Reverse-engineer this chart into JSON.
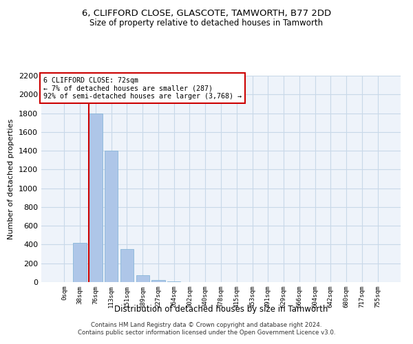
{
  "title_line1": "6, CLIFFORD CLOSE, GLASCOTE, TAMWORTH, B77 2DD",
  "title_line2": "Size of property relative to detached houses in Tamworth",
  "xlabel": "Distribution of detached houses by size in Tamworth",
  "ylabel": "Number of detached properties",
  "footer_line1": "Contains HM Land Registry data © Crown copyright and database right 2024.",
  "footer_line2": "Contains public sector information licensed under the Open Government Licence v3.0.",
  "annotation_line1": "6 CLIFFORD CLOSE: 72sqm",
  "annotation_line2": "← 7% of detached houses are smaller (287)",
  "annotation_line3": "92% of semi-detached houses are larger (3,768) →",
  "bar_labels": [
    "0sqm",
    "38sqm",
    "76sqm",
    "113sqm",
    "151sqm",
    "189sqm",
    "227sqm",
    "264sqm",
    "302sqm",
    "340sqm",
    "378sqm",
    "415sqm",
    "453sqm",
    "491sqm",
    "529sqm",
    "566sqm",
    "604sqm",
    "642sqm",
    "680sqm",
    "717sqm",
    "755sqm"
  ],
  "bar_values": [
    0,
    420,
    1800,
    1400,
    350,
    75,
    25,
    10,
    0,
    0,
    0,
    0,
    0,
    0,
    0,
    0,
    0,
    0,
    0,
    0,
    0
  ],
  "bar_color": "#aec6e8",
  "bar_edge_color": "#7bafd4",
  "highlight_color": "#cc0000",
  "annotation_box_color": "#cc0000",
  "annotation_box_facecolor": "white",
  "grid_color": "#c8d8e8",
  "background_color": "#eef3fa",
  "ylim": [
    0,
    2200
  ],
  "yticks": [
    0,
    200,
    400,
    600,
    800,
    1000,
    1200,
    1400,
    1600,
    1800,
    2000,
    2200
  ]
}
